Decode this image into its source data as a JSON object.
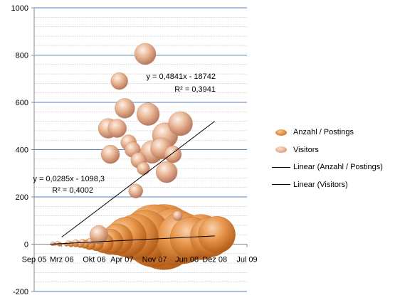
{
  "chart_data": {
    "type": "bubble",
    "x_axis": {
      "type": "date",
      "min": "2005-09-01",
      "max": "2009-07-01",
      "tick_labels": [
        "Sep 05",
        "Mrz 06",
        "Okt 06",
        "Apr 07",
        "Nov 07",
        "Jun 08",
        "Dez 08",
        "Jul 09"
      ],
      "ticks": [
        "2005-09-01",
        "2006-03-01",
        "2006-10-01",
        "2007-04-01",
        "2007-11-01",
        "2008-06-01",
        "2008-12-01",
        "2009-07-01"
      ]
    },
    "y_axis": {
      "min": -200,
      "max": 1000,
      "major_step": 200,
      "minor_step": 40,
      "tick_labels": [
        "-200",
        "0",
        "200",
        "400",
        "600",
        "800",
        "1000"
      ],
      "gridlines": "major and minor"
    },
    "series": [
      {
        "name": "Anzahl / Postings",
        "color": "#e28a3c",
        "points": [
          {
            "x": "2006-01-15",
            "y": 0,
            "size": 2
          },
          {
            "x": "2006-02-15",
            "y": 0,
            "size": 3
          },
          {
            "x": "2006-04-01",
            "y": 0,
            "size": 3
          },
          {
            "x": "2006-05-01",
            "y": 0,
            "size": 4
          },
          {
            "x": "2006-06-01",
            "y": 0,
            "size": 4
          },
          {
            "x": "2006-07-01",
            "y": 0,
            "size": 5
          },
          {
            "x": "2006-08-01",
            "y": 0,
            "size": 6
          },
          {
            "x": "2006-09-01",
            "y": 0,
            "size": 8
          },
          {
            "x": "2006-10-15",
            "y": 2,
            "size": 10
          },
          {
            "x": "2006-12-01",
            "y": 5,
            "size": 14
          },
          {
            "x": "2007-01-15",
            "y": 10,
            "size": 18
          },
          {
            "x": "2007-03-01",
            "y": 20,
            "size": 22
          },
          {
            "x": "2007-05-01",
            "y": 30,
            "size": 28
          },
          {
            "x": "2007-07-01",
            "y": 30,
            "size": 32
          },
          {
            "x": "2007-09-01",
            "y": 35,
            "size": 36
          },
          {
            "x": "2007-11-01",
            "y": 35,
            "size": 44
          },
          {
            "x": "2008-01-01",
            "y": 30,
            "size": 46
          },
          {
            "x": "2008-03-01",
            "y": 30,
            "size": 40
          },
          {
            "x": "2008-05-01",
            "y": 25,
            "size": 36
          },
          {
            "x": "2008-07-01",
            "y": 25,
            "size": 30
          },
          {
            "x": "2008-09-01",
            "y": 30,
            "size": 32
          },
          {
            "x": "2008-11-01",
            "y": 30,
            "size": 28
          },
          {
            "x": "2008-12-15",
            "y": 40,
            "size": 26
          }
        ],
        "trendline": {
          "type": "linear",
          "equation": "y = 0,0285x - 1098,3",
          "r_squared": "R² = 0,4002",
          "from": {
            "x": "2005-12-15",
            "y": 0
          },
          "to": {
            "x": "2008-12-01",
            "y": 35
          }
        }
      },
      {
        "name": "Visitors",
        "color": "#e8b08e",
        "points": [
          {
            "x": "2006-01-01",
            "y": 2,
            "size": 3
          },
          {
            "x": "2006-02-01",
            "y": 4,
            "size": 3
          },
          {
            "x": "2006-04-15",
            "y": 6,
            "size": 3
          },
          {
            "x": "2006-06-01",
            "y": 8,
            "size": 4
          },
          {
            "x": "2006-07-15",
            "y": 10,
            "size": 4
          },
          {
            "x": "2006-09-01",
            "y": 12,
            "size": 4
          },
          {
            "x": "2006-11-01",
            "y": 40,
            "size": 13
          },
          {
            "x": "2007-01-01",
            "y": 490,
            "size": 14
          },
          {
            "x": "2007-01-15",
            "y": 380,
            "size": 13
          },
          {
            "x": "2007-03-01",
            "y": 490,
            "size": 13
          },
          {
            "x": "2007-03-15",
            "y": 690,
            "size": 12
          },
          {
            "x": "2007-04-20",
            "y": 575,
            "size": 14
          },
          {
            "x": "2007-05-15",
            "y": 430,
            "size": 11
          },
          {
            "x": "2007-06-10",
            "y": 400,
            "size": 11
          },
          {
            "x": "2007-07-01",
            "y": 225,
            "size": 10
          },
          {
            "x": "2007-07-20",
            "y": 355,
            "size": 11
          },
          {
            "x": "2007-08-20",
            "y": 320,
            "size": 9
          },
          {
            "x": "2007-09-01",
            "y": 805,
            "size": 15
          },
          {
            "x": "2007-09-20",
            "y": 550,
            "size": 16
          },
          {
            "x": "2007-10-15",
            "y": 390,
            "size": 16
          },
          {
            "x": "2007-12-15",
            "y": 405,
            "size": 15
          },
          {
            "x": "2008-01-10",
            "y": 460,
            "size": 18
          },
          {
            "x": "2008-01-20",
            "y": 305,
            "size": 15
          },
          {
            "x": "2008-03-01",
            "y": 380,
            "size": 12
          },
          {
            "x": "2008-04-20",
            "y": 510,
            "size": 17
          },
          {
            "x": "2008-04-01",
            "y": 120,
            "size": 7
          }
        ],
        "trendline": {
          "type": "linear",
          "equation": "y = 0,4841x - 18742",
          "r_squared": "R² = 0,3941",
          "from": {
            "x": "2006-03-01",
            "y": 30
          },
          "to": {
            "x": "2008-12-01",
            "y": 520
          }
        }
      }
    ],
    "legend": {
      "position": "right",
      "entries": [
        "Anzahl / Postings",
        "Visitors",
        "Linear (Anzahl / Postings)",
        "Linear (Visitors)"
      ]
    }
  }
}
